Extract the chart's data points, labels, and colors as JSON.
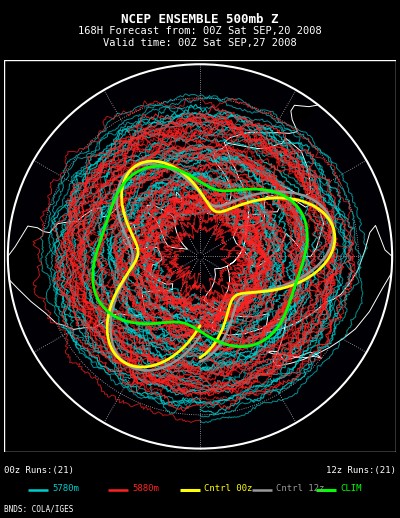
{
  "title_line1": "NCEP ENSEMBLE 500mb Z",
  "title_line2": "168H Forecast from: 00Z Sat SEP,20 2008",
  "title_line3": "Valid time: 00Z Sat SEP,27 2008",
  "bg_color": "#000000",
  "title_color": "#FFFFFF",
  "title_fontsize": 9,
  "subtitle_fontsize": 7.5,
  "legend_left": "00z Runs:(21)",
  "legend_right": "12z Runs:(21)",
  "legend_items": [
    {
      "label": "5780m",
      "color": "#00CCCC",
      "lw": 1.8
    },
    {
      "label": "5880m",
      "color": "#FF2020",
      "lw": 1.8
    },
    {
      "label": "Cntrl 00z",
      "color": "#FFFF00",
      "lw": 2.2
    },
    {
      "label": "Cntrl 12z",
      "color": "#999999",
      "lw": 1.8
    },
    {
      "label": "CLIM",
      "color": "#00FF00",
      "lw": 2.2
    }
  ],
  "credit": "BNDS: COLA/IGES",
  "cyan_color": "#00CCCC",
  "red_color": "#FF2020",
  "yellow_color": "#FFFF00",
  "gray_color": "#999999",
  "green_color": "#00FF00",
  "white_color": "#FFFFFF"
}
